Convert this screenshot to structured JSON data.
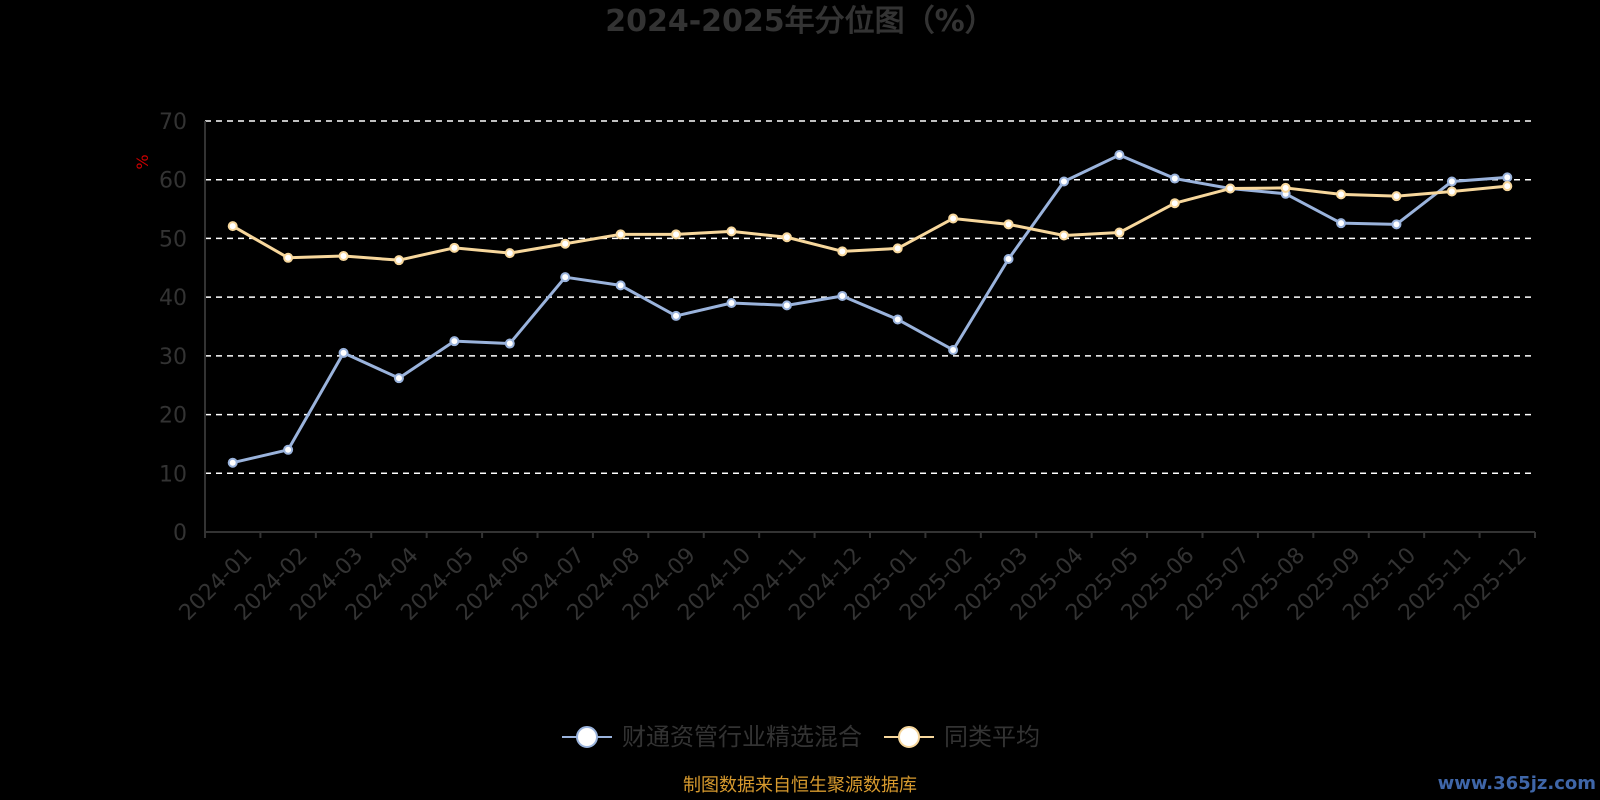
{
  "chart_data": {
    "type": "line",
    "title": "2024-2025年分位图（%）",
    "ylabel": "%",
    "xlabel": "",
    "ylim": [
      0,
      70
    ],
    "yticks": [
      0,
      10,
      20,
      30,
      40,
      50,
      60,
      70
    ],
    "grid": true,
    "legend_position": "bottom",
    "categories": [
      "2024-01",
      "2024-02",
      "2024-03",
      "2024-04",
      "2024-05",
      "2024-06",
      "2024-07",
      "2024-08",
      "2024-09",
      "2024-10",
      "2024-11",
      "2024-12",
      "2025-01",
      "2025-02",
      "2025-03",
      "2025-04",
      "2025-05",
      "2025-06",
      "2025-07",
      "2025-08",
      "2025-09",
      "2025-10",
      "2025-11",
      "2025-12"
    ],
    "series": [
      {
        "name": "财通资管行业精选混合",
        "color": "#9ab3dc",
        "values": [
          11.8,
          14.0,
          30.5,
          26.2,
          32.5,
          32.1,
          43.4,
          42.0,
          36.8,
          39.0,
          38.6,
          40.2,
          36.2,
          31.0,
          46.5,
          59.7,
          64.2,
          60.2,
          58.5,
          57.6,
          52.6,
          52.4,
          59.7,
          60.4
        ]
      },
      {
        "name": "同类平均",
        "color": "#f7d79c",
        "values": [
          52.1,
          46.7,
          47.0,
          46.3,
          48.4,
          47.5,
          49.1,
          50.7,
          50.7,
          51.2,
          50.2,
          47.8,
          48.3,
          53.4,
          52.4,
          50.5,
          51.0,
          56.0,
          58.5,
          58.6,
          57.5,
          57.2,
          58.0,
          58.9
        ]
      }
    ]
  },
  "footer": {
    "source": "制图数据来自恒生聚源数据库",
    "watermark": "www.365jz.com"
  }
}
